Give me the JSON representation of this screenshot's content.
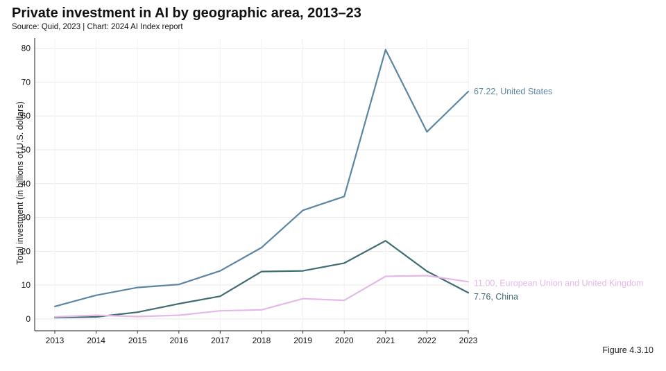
{
  "header": {
    "title": "Private investment in AI by geographic area, 2013–23",
    "subtitle": "Source: Quid, 2023 | Chart: 2024 AI Index report"
  },
  "figure_label": "Figure 4.3.10",
  "chart_data": {
    "type": "line",
    "title": "Private investment in AI by geographic area, 2013–23",
    "xlabel": "",
    "ylabel": "Total investment (in billions of U.S. dollars)",
    "x": [
      2013,
      2014,
      2015,
      2016,
      2017,
      2018,
      2019,
      2020,
      2021,
      2022,
      2023
    ],
    "ylim": [
      -3.5,
      83
    ],
    "yticks": [
      0,
      10,
      20,
      30,
      40,
      50,
      60,
      70,
      80
    ],
    "grid": true,
    "series": [
      {
        "name": "United States",
        "color": "#5a86a3",
        "values": [
          3.7,
          7.0,
          9.3,
          10.2,
          14.2,
          21.1,
          32.1,
          36.2,
          79.6,
          55.3,
          67.22
        ],
        "end_label": "67.22, United States"
      },
      {
        "name": "China",
        "color": "#3f6b72",
        "values": [
          0.4,
          0.6,
          2.0,
          4.5,
          6.7,
          14.0,
          14.2,
          16.5,
          23.1,
          14.1,
          7.76
        ],
        "end_label": "7.76, China"
      },
      {
        "name": "European Union and United Kingdom",
        "color": "#e4b8e8",
        "values": [
          0.6,
          1.1,
          0.7,
          1.1,
          2.4,
          2.7,
          6.0,
          5.5,
          12.6,
          12.8,
          11.0
        ],
        "end_label": "11.00, European Union and United Kingdom"
      }
    ]
  }
}
